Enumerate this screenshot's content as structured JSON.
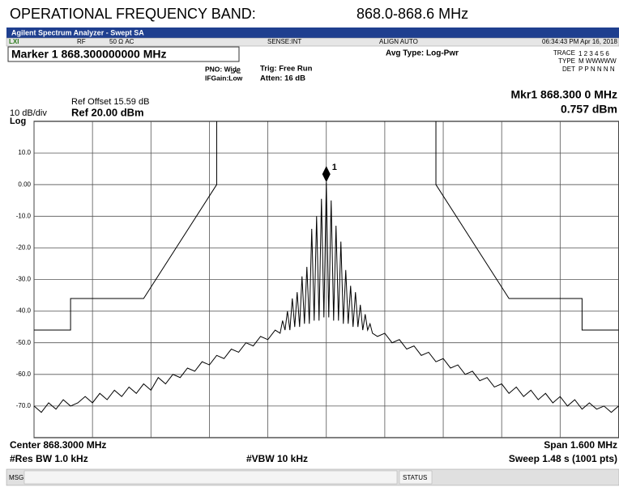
{
  "header": {
    "title": "OPERATIONAL FREQUENCY BAND:",
    "band": "868.0-868.6 MHz"
  },
  "screen": {
    "app_title": "Agilent Spectrum Analyzer - Swept SA",
    "lxi": "LXI",
    "status": [
      "RF",
      "50 Ω  AC",
      "SENSE:INT",
      "ALIGN AUTO",
      "06:34:43 PM Apr 16, 2018"
    ],
    "marker_readout": "Marker 1 868.300000000 MHz",
    "pno": "PNO: Wide",
    "ifgain": "IFGain:Low",
    "trig": "Trig: Free Run",
    "atten": "Atten: 16 dB",
    "avg_type": "Avg Type: Log-Pwr",
    "trace_label": "TRACE",
    "trace_nums": "1 2 3 4 5 6",
    "type_label": "TYPE",
    "type_val": "M WWWWW",
    "det_label": "DET",
    "det_val": "P P N N N N",
    "ref_offset": "Ref Offset 15.59 dB",
    "ref": "Ref 20.00 dBm",
    "scale": "10 dB/div",
    "log": "Log",
    "mkr1": "Mkr1 868.300 0 MHz",
    "mkr1_val": "0.757 dBm",
    "center": "Center 868.3000 MHz",
    "span": "Span 1.600 MHz",
    "rbw": "#Res BW 1.0 kHz",
    "vbw": "#VBW 10 kHz",
    "sweep": "Sweep  1.48 s (1001 pts)",
    "msg": "MSG",
    "status_bar": "STATUS"
  },
  "chart_data": {
    "type": "line",
    "xlim": [
      867.5,
      869.1
    ],
    "xticks": [
      867.5,
      867.66,
      867.82,
      867.98,
      868.14,
      868.3,
      868.46,
      868.62,
      868.78,
      868.94,
      869.1
    ],
    "ylim": [
      -80,
      20
    ],
    "yticks": [
      {
        "value": 10,
        "label": "10.0"
      },
      {
        "value": 0,
        "label": "0.00"
      },
      {
        "value": -10,
        "label": "-10.0"
      },
      {
        "value": -20,
        "label": "-20.0"
      },
      {
        "value": -30,
        "label": "-30.0"
      },
      {
        "value": -40,
        "label": "-40.0"
      },
      {
        "value": -50,
        "label": "-50.0"
      },
      {
        "value": -60,
        "label": "-60.0"
      },
      {
        "value": -70,
        "label": "-70.0"
      }
    ],
    "grid": true,
    "marker": {
      "x": 868.3,
      "y": 0.757,
      "label": "1"
    },
    "series": [
      {
        "color": "#000000",
        "x": [
          867.5,
          867.6,
          867.6,
          867.8,
          868.0,
          868.0,
          868.6,
          868.6,
          868.8,
          869.0,
          869.0,
          869.1
        ],
        "values": [
          -46,
          -46,
          -36,
          -36,
          0,
          20,
          20,
          0,
          -36,
          -36,
          -46,
          -46
        ]
      },
      {
        "color": "#000000",
        "x": [
          867.5,
          867.52,
          867.54,
          867.56,
          867.58,
          867.6,
          867.62,
          867.64,
          867.66,
          867.68,
          867.7,
          867.72,
          867.74,
          867.76,
          867.78,
          867.8,
          867.82,
          867.84,
          867.86,
          867.88,
          867.9,
          867.92,
          867.94,
          867.96,
          867.98,
          868.0,
          868.02,
          868.04,
          868.06,
          868.08,
          868.1,
          868.12,
          868.14,
          868.16,
          868.1736,
          868.1803,
          868.187,
          868.1936,
          868.2003,
          868.2069,
          868.2136,
          868.2202,
          868.2269,
          868.2335,
          868.2402,
          868.2468,
          868.2535,
          868.2601,
          868.2668,
          868.2734,
          868.2801,
          868.2867,
          868.2934,
          868.3,
          868.3067,
          868.3133,
          868.32,
          868.3266,
          868.3333,
          868.3399,
          868.3466,
          868.3532,
          868.3599,
          868.3665,
          868.3732,
          868.3798,
          868.3865,
          868.3931,
          868.3998,
          868.4064,
          868.4131,
          868.4197,
          868.4264,
          868.44,
          868.46,
          868.48,
          868.5,
          868.52,
          868.54,
          868.56,
          868.58,
          868.6,
          868.62,
          868.64,
          868.66,
          868.68,
          868.7,
          868.72,
          868.74,
          868.76,
          868.78,
          868.8,
          868.82,
          868.84,
          868.86,
          868.88,
          868.9,
          868.92,
          868.94,
          868.96,
          868.98,
          869.0,
          869.02,
          869.04,
          869.06,
          869.08,
          869.1
        ],
        "values": [
          -70,
          -72,
          -69,
          -71,
          -68,
          -70,
          -69,
          -67,
          -69,
          -66,
          -68,
          -65,
          -67,
          -64,
          -66,
          -63,
          -65,
          -61,
          -63,
          -60,
          -61,
          -58,
          -59,
          -56,
          -57,
          -54,
          -55,
          -52,
          -53,
          -50,
          -51,
          -48,
          -49,
          -46,
          -47,
          -43,
          -46,
          -40,
          -46,
          -36,
          -45,
          -34,
          -45,
          -29,
          -44,
          -26,
          -44,
          -14,
          -43,
          -10,
          -43,
          -4.5,
          -42,
          0.757,
          -42,
          -5,
          -43,
          -13,
          -43,
          -18,
          -44,
          -27,
          -44,
          -32,
          -45,
          -34,
          -45,
          -38,
          -46,
          -41,
          -46,
          -44,
          -47,
          -48,
          -47,
          -50,
          -49,
          -52,
          -51,
          -54,
          -53,
          -56,
          -55,
          -58,
          -57,
          -60,
          -59,
          -62,
          -61,
          -64,
          -63,
          -66,
          -64,
          -67,
          -65,
          -68,
          -66,
          -69,
          -67,
          -70,
          -68,
          -71,
          -69,
          -71,
          -70,
          -72,
          -70
        ]
      }
    ]
  }
}
